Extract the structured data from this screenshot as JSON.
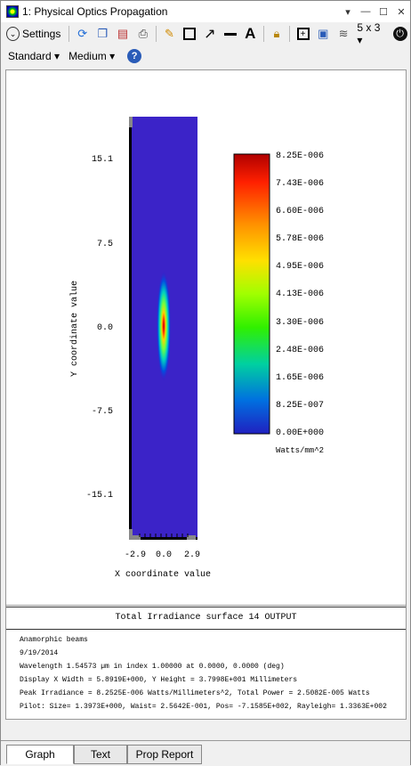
{
  "window": {
    "title": "1: Physical Optics Propagation"
  },
  "toolbar": {
    "settings_label": "Settings",
    "layout_label": "5 x 3 ▾"
  },
  "toolbar2": {
    "standard_label": "Standard ▾",
    "medium_label": "Medium ▾"
  },
  "plot": {
    "y_ticks": [
      "15.1",
      "7.5",
      "0.0",
      "-7.5",
      "-15.1"
    ],
    "x_ticks": [
      "-2.9",
      "0.0",
      "2.9"
    ],
    "xlabel": "X coordinate value",
    "ylabel": "Y coordinate value"
  },
  "colorbar": {
    "labels": [
      "8.25E-006",
      "7.43E-006",
      "6.60E-006",
      "5.78E-006",
      "4.95E-006",
      "4.13E-006",
      "3.30E-006",
      "2.48E-006",
      "1.65E-006",
      "8.25E-007",
      "0.00E+000"
    ],
    "unit": "Watts/mm^2"
  },
  "info": {
    "title": "Total Irradiance surface 14 OUTPUT",
    "lines": [
      "Anamorphic beams",
      "9/19/2014",
      "Wavelength 1.54573 µm in index 1.00000 at 0.0000, 0.0000 (deg)",
      "Display X Width = 5.8919E+000, Y Height = 3.7998E+001 Millimeters",
      "Peak Irradiance = 8.2525E-006 Watts/Millimeters^2, Total Power = 2.5082E-005 Watts",
      "Pilot: Size= 1.3973E+000, Waist= 2.5642E-001, Pos= -7.1585E+002, Rayleigh= 1.3363E+002"
    ]
  },
  "tabs": [
    {
      "label": "Graph"
    },
    {
      "label": "Text"
    },
    {
      "label": "Prop Report"
    }
  ]
}
